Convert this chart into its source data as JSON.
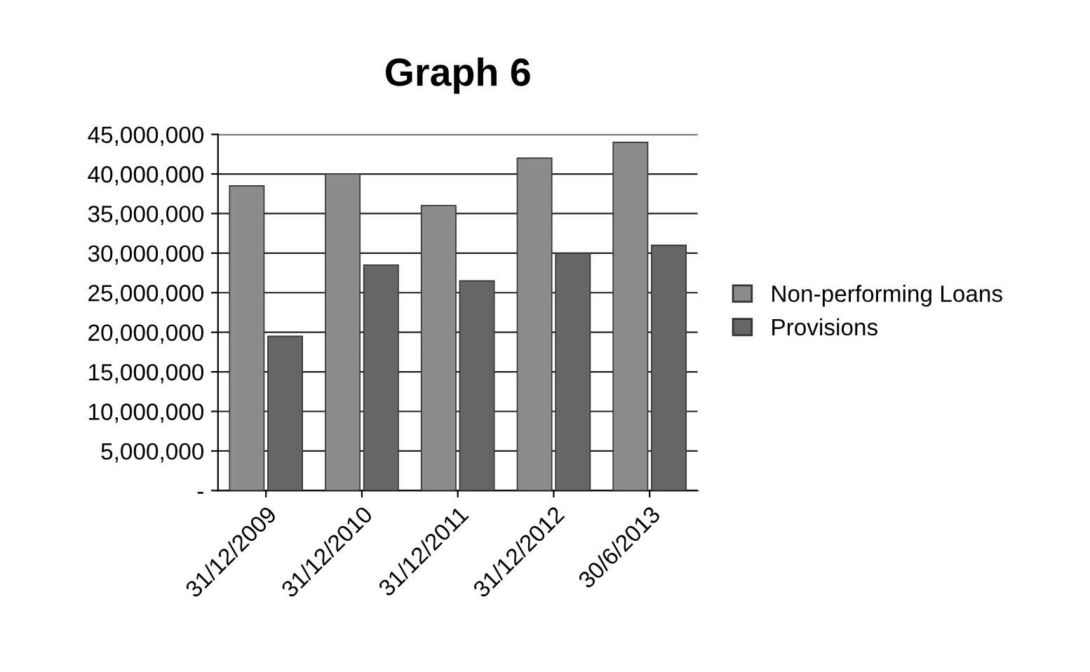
{
  "chart_data": {
    "type": "bar",
    "title": "Graph 6",
    "categories": [
      "31/12/2009",
      "31/12/2010",
      "31/12/2011",
      "31/12/2012",
      "30/6/2013"
    ],
    "series": [
      {
        "name": "Non-performing Loans",
        "color": "#8c8c8c",
        "values": [
          38500000,
          40000000,
          36000000,
          42000000,
          44000000
        ]
      },
      {
        "name": "Provisions",
        "color": "#666666",
        "values": [
          19500000,
          28500000,
          26500000,
          30000000,
          31000000
        ]
      }
    ],
    "ylim": [
      0,
      45000000
    ],
    "yticks": [
      {
        "value": 0,
        "label": "-"
      },
      {
        "value": 5000000,
        "label": "5,000,000"
      },
      {
        "value": 10000000,
        "label": "10,000,000"
      },
      {
        "value": 15000000,
        "label": "15,000,000"
      },
      {
        "value": 20000000,
        "label": "20,000,000"
      },
      {
        "value": 25000000,
        "label": "25,000,000"
      },
      {
        "value": 30000000,
        "label": "30,000,000"
      },
      {
        "value": 35000000,
        "label": "35,000,000"
      },
      {
        "value": 40000000,
        "label": "40,000,000"
      },
      {
        "value": 45000000,
        "label": "45,000,000"
      }
    ],
    "grid": "y",
    "legend": "right"
  }
}
